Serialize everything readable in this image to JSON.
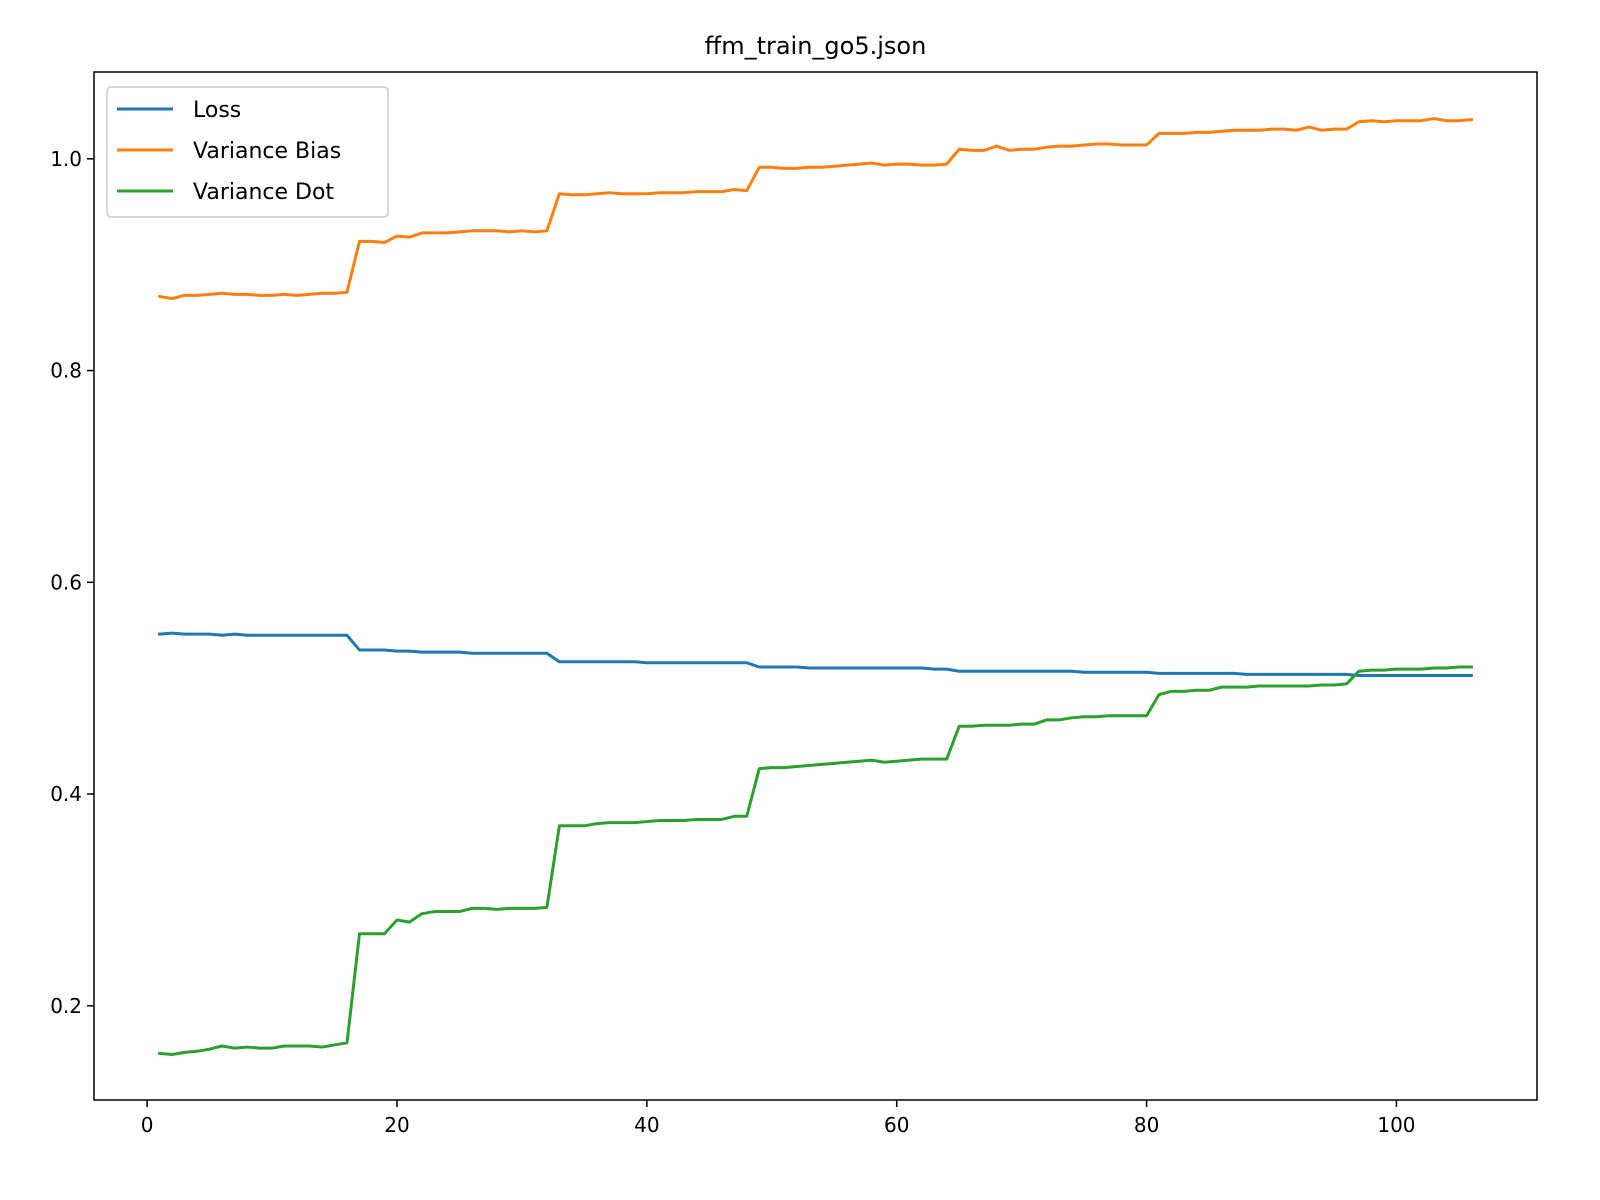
{
  "chart_data": {
    "type": "line",
    "title": "ffm_train_go5.json",
    "xlabel": "",
    "ylabel": "",
    "xlim": [
      -4.25,
      111.25
    ],
    "ylim": [
      0.111,
      1.082
    ],
    "xticks": [
      0,
      20,
      40,
      60,
      80,
      100
    ],
    "xtick_labels": [
      "0",
      "20",
      "40",
      "60",
      "80",
      "100"
    ],
    "yticks": [
      0.2,
      0.4,
      0.6,
      0.8,
      1.0
    ],
    "ytick_labels": [
      "0.2",
      "0.4",
      "0.6",
      "0.8",
      "1.0"
    ],
    "grid": false,
    "legend_position": "upper-left",
    "x": [
      1,
      2,
      3,
      4,
      5,
      6,
      7,
      8,
      9,
      10,
      11,
      12,
      13,
      14,
      15,
      16,
      17,
      18,
      19,
      20,
      21,
      22,
      23,
      24,
      25,
      26,
      27,
      28,
      29,
      30,
      31,
      32,
      33,
      34,
      35,
      36,
      37,
      38,
      39,
      40,
      41,
      42,
      43,
      44,
      45,
      46,
      47,
      48,
      49,
      50,
      51,
      52,
      53,
      54,
      55,
      56,
      57,
      58,
      59,
      60,
      61,
      62,
      63,
      64,
      65,
      66,
      67,
      68,
      69,
      70,
      71,
      72,
      73,
      74,
      75,
      76,
      77,
      78,
      79,
      80,
      81,
      82,
      83,
      84,
      85,
      86,
      87,
      88,
      89,
      90,
      91,
      92,
      93,
      94,
      95,
      96,
      97,
      98,
      99,
      100,
      101,
      102,
      103,
      104,
      105,
      106
    ],
    "series": [
      {
        "name": "Loss",
        "color": "#1f77b4",
        "values": [
          0.551,
          0.552,
          0.551,
          0.551,
          0.551,
          0.55,
          0.551,
          0.55,
          0.55,
          0.55,
          0.55,
          0.55,
          0.55,
          0.55,
          0.55,
          0.55,
          0.536,
          0.536,
          0.536,
          0.535,
          0.535,
          0.534,
          0.534,
          0.534,
          0.534,
          0.533,
          0.533,
          0.533,
          0.533,
          0.533,
          0.533,
          0.533,
          0.525,
          0.525,
          0.525,
          0.525,
          0.525,
          0.525,
          0.525,
          0.524,
          0.524,
          0.524,
          0.524,
          0.524,
          0.524,
          0.524,
          0.524,
          0.524,
          0.52,
          0.52,
          0.52,
          0.52,
          0.519,
          0.519,
          0.519,
          0.519,
          0.519,
          0.519,
          0.519,
          0.519,
          0.519,
          0.519,
          0.518,
          0.518,
          0.516,
          0.516,
          0.516,
          0.516,
          0.516,
          0.516,
          0.516,
          0.516,
          0.516,
          0.516,
          0.515,
          0.515,
          0.515,
          0.515,
          0.515,
          0.515,
          0.514,
          0.514,
          0.514,
          0.514,
          0.514,
          0.514,
          0.514,
          0.513,
          0.513,
          0.513,
          0.513,
          0.513,
          0.513,
          0.513,
          0.513,
          0.513,
          0.512,
          0.512,
          0.512,
          0.512,
          0.512,
          0.512,
          0.512,
          0.512,
          0.512,
          0.512
        ]
      },
      {
        "name": "Variance Bias",
        "color": "#ff7f0e",
        "values": [
          0.87,
          0.868,
          0.871,
          0.871,
          0.872,
          0.873,
          0.872,
          0.872,
          0.871,
          0.871,
          0.872,
          0.871,
          0.872,
          0.873,
          0.873,
          0.874,
          0.922,
          0.922,
          0.921,
          0.927,
          0.926,
          0.93,
          0.93,
          0.93,
          0.931,
          0.932,
          0.932,
          0.932,
          0.931,
          0.932,
          0.931,
          0.932,
          0.967,
          0.966,
          0.966,
          0.967,
          0.968,
          0.967,
          0.967,
          0.967,
          0.968,
          0.968,
          0.968,
          0.969,
          0.969,
          0.969,
          0.971,
          0.97,
          0.992,
          0.992,
          0.991,
          0.991,
          0.992,
          0.992,
          0.993,
          0.994,
          0.995,
          0.996,
          0.994,
          0.995,
          0.995,
          0.994,
          0.994,
          0.995,
          1.009,
          1.008,
          1.008,
          1.012,
          1.008,
          1.009,
          1.009,
          1.011,
          1.012,
          1.012,
          1.013,
          1.014,
          1.014,
          1.013,
          1.013,
          1.013,
          1.024,
          1.024,
          1.024,
          1.025,
          1.025,
          1.026,
          1.027,
          1.027,
          1.027,
          1.028,
          1.028,
          1.027,
          1.03,
          1.027,
          1.028,
          1.028,
          1.035,
          1.036,
          1.035,
          1.036,
          1.036,
          1.036,
          1.038,
          1.036,
          1.036,
          1.037
        ]
      },
      {
        "name": "Variance Dot",
        "color": "#2ca02c",
        "values": [
          0.155,
          0.154,
          0.156,
          0.157,
          0.159,
          0.162,
          0.16,
          0.161,
          0.16,
          0.16,
          0.162,
          0.162,
          0.162,
          0.161,
          0.163,
          0.165,
          0.268,
          0.268,
          0.268,
          0.281,
          0.279,
          0.287,
          0.289,
          0.289,
          0.289,
          0.292,
          0.292,
          0.291,
          0.292,
          0.292,
          0.292,
          0.293,
          0.37,
          0.37,
          0.37,
          0.372,
          0.373,
          0.373,
          0.373,
          0.374,
          0.375,
          0.375,
          0.375,
          0.376,
          0.376,
          0.376,
          0.379,
          0.379,
          0.424,
          0.425,
          0.425,
          0.426,
          0.427,
          0.428,
          0.429,
          0.43,
          0.431,
          0.432,
          0.43,
          0.431,
          0.432,
          0.433,
          0.433,
          0.433,
          0.464,
          0.464,
          0.465,
          0.465,
          0.465,
          0.466,
          0.466,
          0.47,
          0.47,
          0.472,
          0.473,
          0.473,
          0.474,
          0.474,
          0.474,
          0.474,
          0.494,
          0.497,
          0.497,
          0.498,
          0.498,
          0.501,
          0.501,
          0.501,
          0.502,
          0.502,
          0.502,
          0.502,
          0.502,
          0.503,
          0.503,
          0.504,
          0.516,
          0.517,
          0.517,
          0.518,
          0.518,
          0.518,
          0.519,
          0.519,
          0.52,
          0.52
        ]
      }
    ]
  }
}
